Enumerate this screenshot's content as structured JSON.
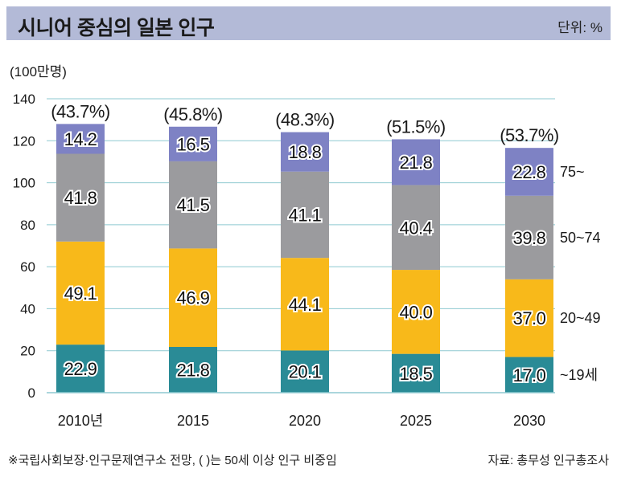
{
  "title": "시니어 중심의 일본 인구",
  "unit": "단위: %",
  "footnote": "※국립사회보장·인구문제연구소 전망, (  )는 50세 이상 인구 비중임",
  "source": "자료: 총무성 인구총조사",
  "chart_data": {
    "type": "bar",
    "stacked": true,
    "ylabel": "(100만명)",
    "ylim": [
      0,
      140
    ],
    "yticks": [
      0,
      20,
      40,
      60,
      80,
      100,
      120,
      140
    ],
    "grid": true,
    "categories": [
      "2010년",
      "2015",
      "2020",
      "2025",
      "2030"
    ],
    "series": [
      {
        "name": "~19세",
        "color": "#2a8b96",
        "values": [
          22.9,
          21.8,
          20.1,
          18.5,
          17.0
        ],
        "labels": [
          "22.9",
          "21.8",
          "20.1",
          "18.5",
          "17.0"
        ]
      },
      {
        "name": "20~49",
        "color": "#f8b91a",
        "values": [
          49.1,
          46.9,
          44.1,
          40.0,
          37.0
        ],
        "labels": [
          "49.1",
          "46.9",
          "44.1",
          "40.0",
          "37.0"
        ]
      },
      {
        "name": "50~74",
        "color": "#9b9b9e",
        "values": [
          41.8,
          41.5,
          41.1,
          40.4,
          39.8
        ],
        "labels": [
          "41.8",
          "41.5",
          "41.1",
          "40.4",
          "39.8"
        ]
      },
      {
        "name": "75~",
        "color": "#7e82c4",
        "values": [
          14.2,
          16.5,
          18.8,
          21.8,
          22.8
        ],
        "labels": [
          "14.2",
          "16.5",
          "18.8",
          "21.8",
          "22.8"
        ]
      }
    ],
    "top_labels": [
      "(43.7%)",
      "(45.8%)",
      "(48.3%)",
      "(51.5%)",
      "(53.7%)"
    ],
    "grid_color": "#8ec9d0"
  }
}
